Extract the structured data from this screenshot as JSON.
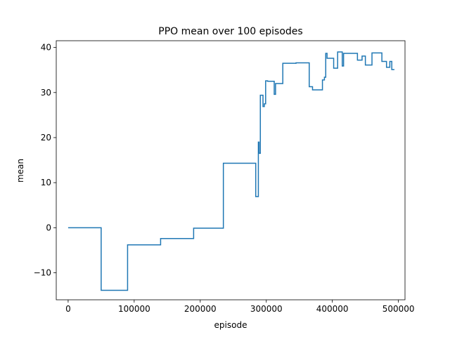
{
  "chart_data": {
    "type": "line",
    "title": "PPO mean over 100 episodes",
    "xlabel": "episode",
    "ylabel": "mean",
    "xlim": [
      -18000,
      510000
    ],
    "ylim": [
      -16,
      41.5
    ],
    "xticks": [
      0,
      100000,
      200000,
      300000,
      400000,
      500000
    ],
    "xtick_labels": [
      "0",
      "100000",
      "200000",
      "300000",
      "400000",
      "500000"
    ],
    "yticks": [
      -10,
      0,
      10,
      20,
      30,
      40
    ],
    "ytick_labels": [
      "−10",
      "0",
      "10",
      "20",
      "30",
      "40"
    ],
    "grid": false,
    "legend": "none",
    "series": [
      {
        "color": "#1f77b4",
        "step": true,
        "x": [
          0,
          50000,
          90000,
          140000,
          190000,
          235000,
          284000,
          288000,
          289000,
          291000,
          295000,
          297000,
          299000,
          302000,
          312000,
          314000,
          316000,
          325000,
          345000,
          365000,
          370000,
          385000,
          388000,
          390000,
          392000,
          393000,
          402000,
          408000,
          415000,
          417000,
          430000,
          438000,
          445000,
          450000,
          460000,
          465000,
          475000,
          482000,
          487000,
          490000,
          494000
        ],
        "y": [
          0,
          -13.9,
          -3.8,
          -2.4,
          -0.1,
          14.3,
          6.9,
          19,
          16.5,
          29.4,
          26.9,
          27.5,
          32.6,
          32.5,
          29.6,
          32,
          32,
          36.5,
          36.6,
          31.3,
          30.6,
          32.8,
          33.4,
          38.7,
          37.6,
          37.6,
          35.4,
          39,
          35.9,
          38.7,
          38.7,
          37.2,
          38.1,
          36.1,
          38.8,
          38.8,
          36.9,
          35.6,
          36.9,
          35.1,
          35.1
        ]
      }
    ]
  }
}
